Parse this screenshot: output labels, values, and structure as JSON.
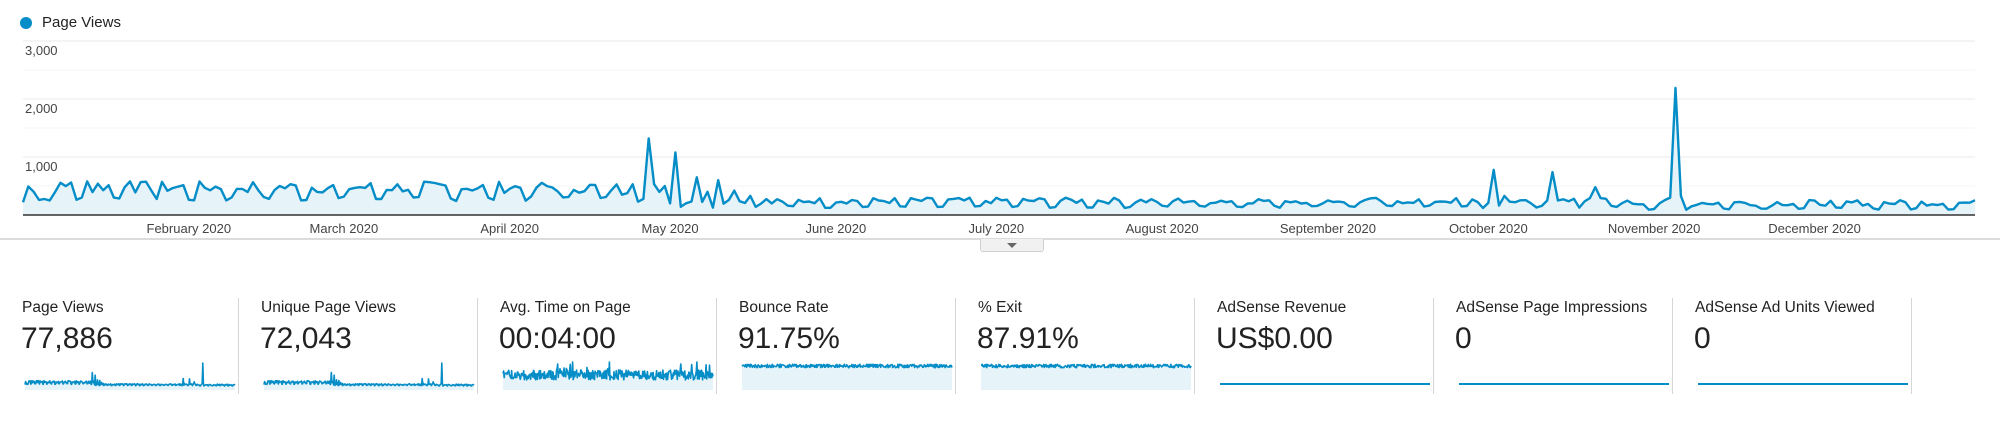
{
  "legend": {
    "label": "Page Views",
    "color": "#058dc7"
  },
  "colors": {
    "line": "#058dc7",
    "fill": "#e6f3f9",
    "grid": "#efefef",
    "axis": "#333333"
  },
  "chart_data": {
    "type": "area",
    "title": "",
    "series": [
      {
        "name": "Page Views"
      }
    ],
    "xlabel": "",
    "ylabel": "",
    "ylim": [
      0,
      3000
    ],
    "y_ticks": [
      "3,000",
      "2,000",
      "1,000"
    ],
    "y_tick_values": [
      3000,
      2000,
      1000
    ],
    "x_tick_labels": [
      "February 2020",
      "March 2020",
      "April 2020",
      "May 2020",
      "June 2020",
      "July 2020",
      "August 2020",
      "September 2020",
      "October 2020",
      "November 2020",
      "December 2020"
    ],
    "x_tick_day_index": [
      31,
      60,
      91,
      121,
      152,
      182,
      213,
      244,
      274,
      305,
      335
    ],
    "date_range": [
      "2020-01-01",
      "2020-12-31"
    ],
    "grid": true,
    "legend_position": "top-left",
    "baseline_ranges": [
      {
        "from": 0,
        "to": 110,
        "min": 180,
        "max": 580
      },
      {
        "from": 120,
        "to": 260,
        "min": 90,
        "max": 300
      },
      {
        "from": 300,
        "to": 365,
        "min": 60,
        "max": 260
      }
    ],
    "annotated_points": [
      {
        "day": 0,
        "value": 220
      },
      {
        "day": 2,
        "value": 400
      },
      {
        "day": 5,
        "value": 250
      },
      {
        "day": 9,
        "value": 560
      },
      {
        "day": 12,
        "value": 580
      },
      {
        "day": 14,
        "value": 540
      },
      {
        "day": 17,
        "value": 300
      },
      {
        "day": 20,
        "value": 580
      },
      {
        "day": 24,
        "value": 420
      },
      {
        "day": 112,
        "value": 350
      },
      {
        "day": 114,
        "value": 530
      },
      {
        "day": 115,
        "value": 230
      },
      {
        "day": 117,
        "value": 1320
      },
      {
        "day": 120,
        "value": 500
      },
      {
        "day": 122,
        "value": 1080
      },
      {
        "day": 126,
        "value": 650
      },
      {
        "day": 128,
        "value": 400
      },
      {
        "day": 130,
        "value": 600
      },
      {
        "day": 133,
        "value": 420
      },
      {
        "day": 136,
        "value": 330
      },
      {
        "day": 140,
        "value": 200
      },
      {
        "day": 273,
        "value": 120
      },
      {
        "day": 275,
        "value": 780
      },
      {
        "day": 277,
        "value": 330
      },
      {
        "day": 279,
        "value": 220
      },
      {
        "day": 282,
        "value": 200
      },
      {
        "day": 283,
        "value": 130
      },
      {
        "day": 285,
        "value": 250
      },
      {
        "day": 286,
        "value": 740
      },
      {
        "day": 288,
        "value": 270
      },
      {
        "day": 290,
        "value": 280
      },
      {
        "day": 294,
        "value": 480
      },
      {
        "day": 296,
        "value": 280
      },
      {
        "day": 306,
        "value": 200
      },
      {
        "day": 308,
        "value": 300
      },
      {
        "day": 309,
        "value": 2190
      },
      {
        "day": 310,
        "value": 330
      },
      {
        "day": 312,
        "value": 150
      }
    ]
  },
  "scorecards": [
    {
      "label": "Page Views",
      "value": "77,886",
      "spark": "pageviews"
    },
    {
      "label": "Unique Page Views",
      "value": "72,043",
      "spark": "pageviews"
    },
    {
      "label": "Avg. Time on Page",
      "value": "00:04:00",
      "spark": "noisy"
    },
    {
      "label": "Bounce Rate",
      "value": "91.75%",
      "spark": "high"
    },
    {
      "label": "% Exit",
      "value": "87.91%",
      "spark": "high"
    },
    {
      "label": "AdSense Revenue",
      "value": "US$0.00",
      "spark": "flat"
    },
    {
      "label": "AdSense Page Impressions",
      "value": "0",
      "spark": "flat"
    },
    {
      "label": "AdSense Ad Units Viewed",
      "value": "0",
      "spark": "flat"
    }
  ]
}
